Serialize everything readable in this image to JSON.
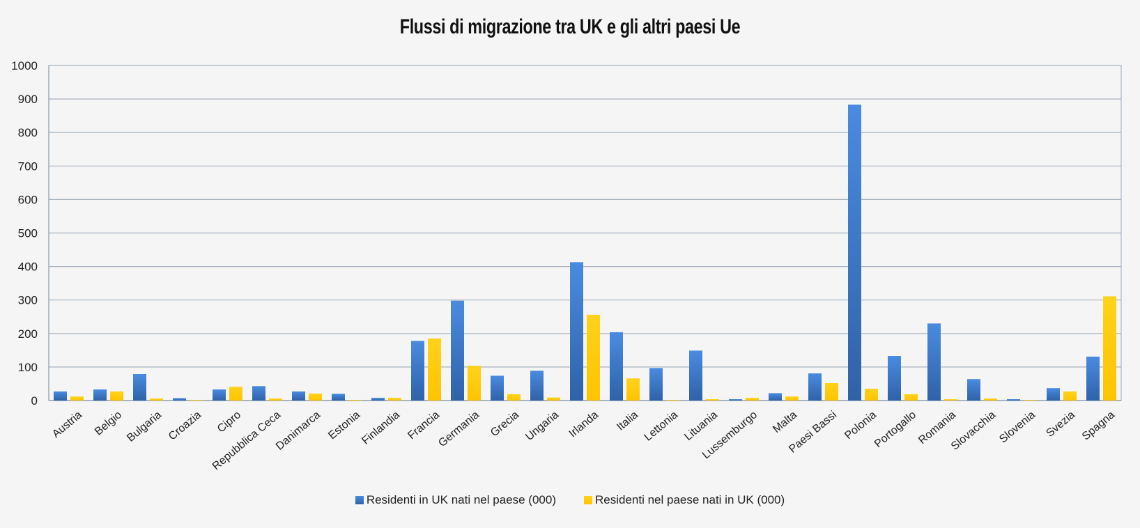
{
  "chart_data": {
    "type": "bar",
    "title": "Flussi di migrazione tra UK e gli altri paesi Ue",
    "xlabel": "",
    "ylabel": "",
    "ylim": [
      0,
      1000
    ],
    "yticks": [
      0,
      100,
      200,
      300,
      400,
      500,
      600,
      700,
      800,
      900,
      1000
    ],
    "grid": true,
    "legend_position": "bottom",
    "categories": [
      "Austria",
      "Belgio",
      "Bulgaria",
      "Croazia",
      "Cipro",
      "Repubblica Ceca",
      "Danimarca",
      "Estonia",
      "Finlandia",
      "Francia",
      "Germania",
      "Grecia",
      "Ungaria",
      "Irlanda",
      "Italia",
      "Lettonia",
      "Lituania",
      "Lussemburgo",
      "Malta",
      "Paesi Bassi",
      "Polonia",
      "Portogallo",
      "Romania",
      "Slovacchia",
      "Slovenia",
      "Svezia",
      "Spagna"
    ],
    "series": [
      {
        "name": "Residenti in UK nati nel paese (000)",
        "color": "#3c78c8",
        "values": [
          27,
          33,
          79,
          7,
          33,
          43,
          27,
          20,
          8,
          178,
          298,
          74,
          89,
          413,
          204,
          97,
          149,
          4,
          22,
          81,
          883,
          133,
          230,
          64,
          4,
          37,
          131
        ]
      },
      {
        "name": "Residenti nel paese nati in UK (000)",
        "color": "#ffcc00",
        "values": [
          12,
          27,
          6,
          2,
          41,
          6,
          21,
          2,
          8,
          185,
          104,
          19,
          9,
          256,
          66,
          2,
          4,
          8,
          12,
          52,
          35,
          19,
          4,
          6,
          2,
          27,
          311
        ]
      }
    ]
  }
}
